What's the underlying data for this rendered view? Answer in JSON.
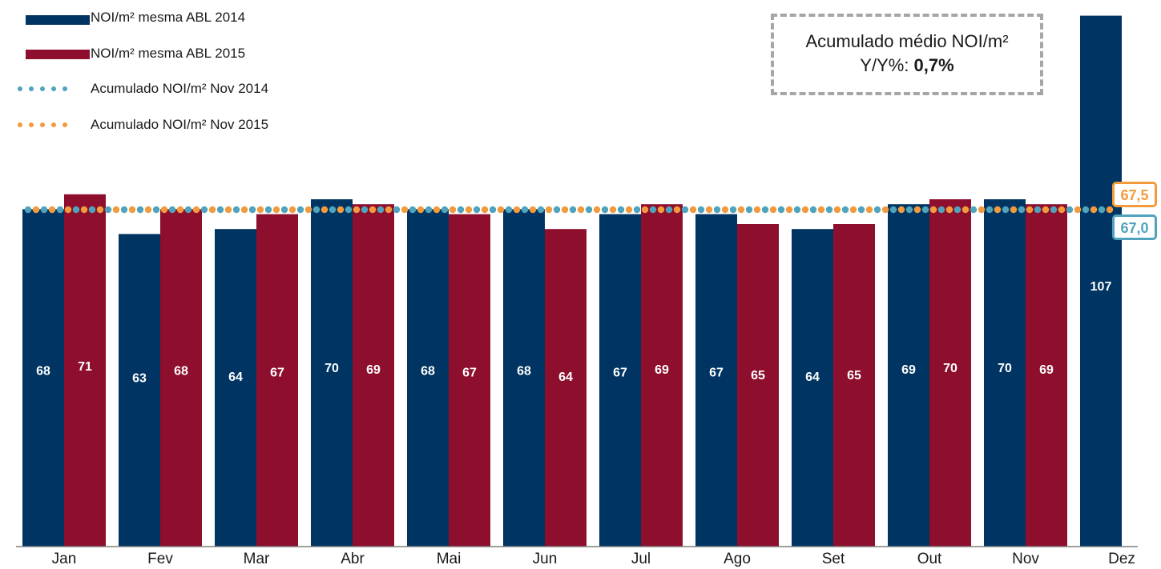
{
  "chart_data": {
    "type": "bar",
    "categories": [
      "Jan",
      "Fev",
      "Mar",
      "Abr",
      "Mai",
      "Jun",
      "Jul",
      "Ago",
      "Set",
      "Out",
      "Nov",
      "Dez"
    ],
    "series": [
      {
        "name": "NOI/m² mesma ABL 2014",
        "color": "#003462",
        "values": [
          68,
          63,
          64,
          70,
          68,
          68,
          67,
          67,
          64,
          69,
          70,
          107
        ]
      },
      {
        "name": "NOI/m² mesma ABL 2015",
        "color": "#8e0e2d",
        "values": [
          71,
          68,
          67,
          69,
          67,
          64,
          69,
          65,
          65,
          70,
          69,
          null
        ]
      }
    ],
    "reference_lines": [
      {
        "name": "Acumulado NOI/m² Nov 2014",
        "value": 67.0,
        "label": "67,0",
        "color": "#4fa3bd",
        "style": "dotted"
      },
      {
        "name": "Acumulado NOI/m² Nov 2015",
        "value": 67.5,
        "label": "67,5",
        "color": "#f39b3c",
        "style": "dotted"
      }
    ],
    "annotation": {
      "line1": "Acumulado médio NOI/m²",
      "line2_prefix": "Y/Y%: ",
      "line2_value": "0,7%"
    },
    "grid": false,
    "legend_position": "top-left"
  }
}
